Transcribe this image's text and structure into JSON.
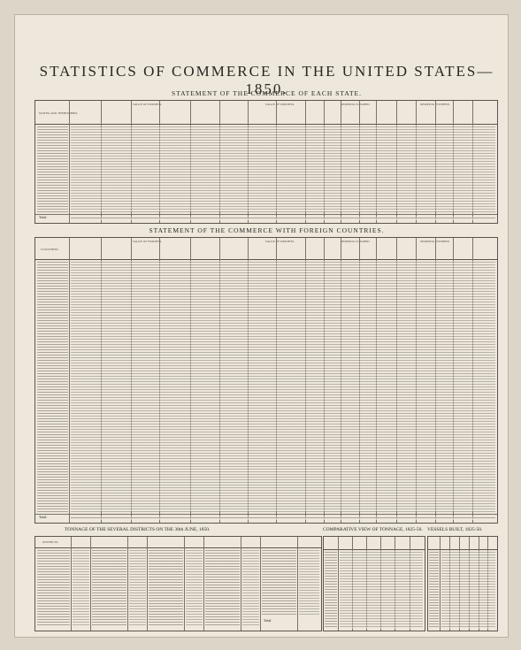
{
  "title": "STATISTICS OF COMMERCE IN THE UNITED STATES—1850.",
  "sections": {
    "states": "STATEMENT OF THE COMMERCE OF EACH STATE.",
    "foreign": "STATEMENT OF THE COMMERCE WITH FOREIGN COUNTRIES.",
    "tonnage_districts": "TONNAGE OF THE SEVERAL DISTRICTS ON THE 30th JUNE, 1850.",
    "comparative": "COMPARATIVE VIEW OF TONNAGE, 1825-50.",
    "vessels": "VESSELS BUILT, 1825-50."
  },
  "headers": {
    "value_exports": "VALUE OF EXPORTS.",
    "value_imports": "VALUE OF IMPORTS.",
    "shipping_cleared": "SHIPPING CLEARED.",
    "shipping_entered": "SHIPPING ENTERED.",
    "states_col": "STATES AND TERRITORIES.",
    "countries_col": "COUNTRIES.",
    "districts_col": "DISTRICTS."
  },
  "totals": {
    "states_row_label": "Total",
    "foreign_row_label": "Total",
    "tonnage_row_label": "Total"
  }
}
